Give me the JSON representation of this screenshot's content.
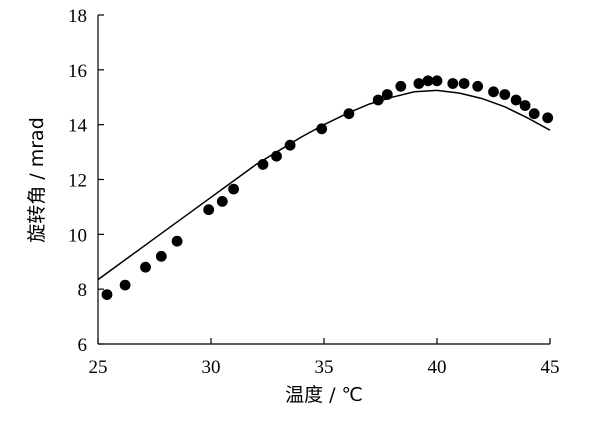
{
  "chart_data": {
    "type": "scatter",
    "xlabel": "温度 / ℃",
    "ylabel": "旋转角 / mrad",
    "xlim": [
      25,
      45
    ],
    "ylim": [
      6,
      18
    ],
    "xticks": [
      25,
      30,
      35,
      40,
      45
    ],
    "yticks": [
      6,
      8,
      10,
      12,
      14,
      16,
      18
    ],
    "grid": false,
    "series": [
      {
        "type": "scatter",
        "x": [
          25.4,
          26.2,
          27.1,
          27.8,
          28.5,
          29.9,
          30.5,
          31.0,
          32.3,
          32.9,
          33.5,
          34.9,
          36.1,
          37.4,
          37.8,
          38.4,
          39.2,
          39.6,
          40.0,
          40.7,
          41.2,
          41.8,
          42.5,
          43.0,
          43.5,
          43.9,
          44.3,
          44.9
        ],
        "y": [
          7.8,
          8.15,
          8.8,
          9.2,
          9.75,
          10.9,
          11.2,
          11.65,
          12.55,
          12.85,
          13.25,
          13.85,
          14.4,
          14.9,
          15.1,
          15.4,
          15.5,
          15.6,
          15.6,
          15.5,
          15.5,
          15.4,
          15.2,
          15.1,
          14.9,
          14.7,
          14.4,
          14.25
        ]
      },
      {
        "type": "line",
        "x": [
          25,
          26,
          27,
          28,
          29,
          30,
          31,
          32,
          33,
          34,
          35,
          36,
          37,
          38,
          39,
          40,
          41,
          42,
          43,
          44,
          45
        ],
        "y": [
          8.35,
          8.95,
          9.55,
          10.15,
          10.75,
          11.35,
          11.95,
          12.55,
          13.05,
          13.55,
          14.0,
          14.4,
          14.75,
          15.0,
          15.2,
          15.25,
          15.15,
          14.95,
          14.65,
          14.25,
          13.8
        ]
      }
    ]
  }
}
